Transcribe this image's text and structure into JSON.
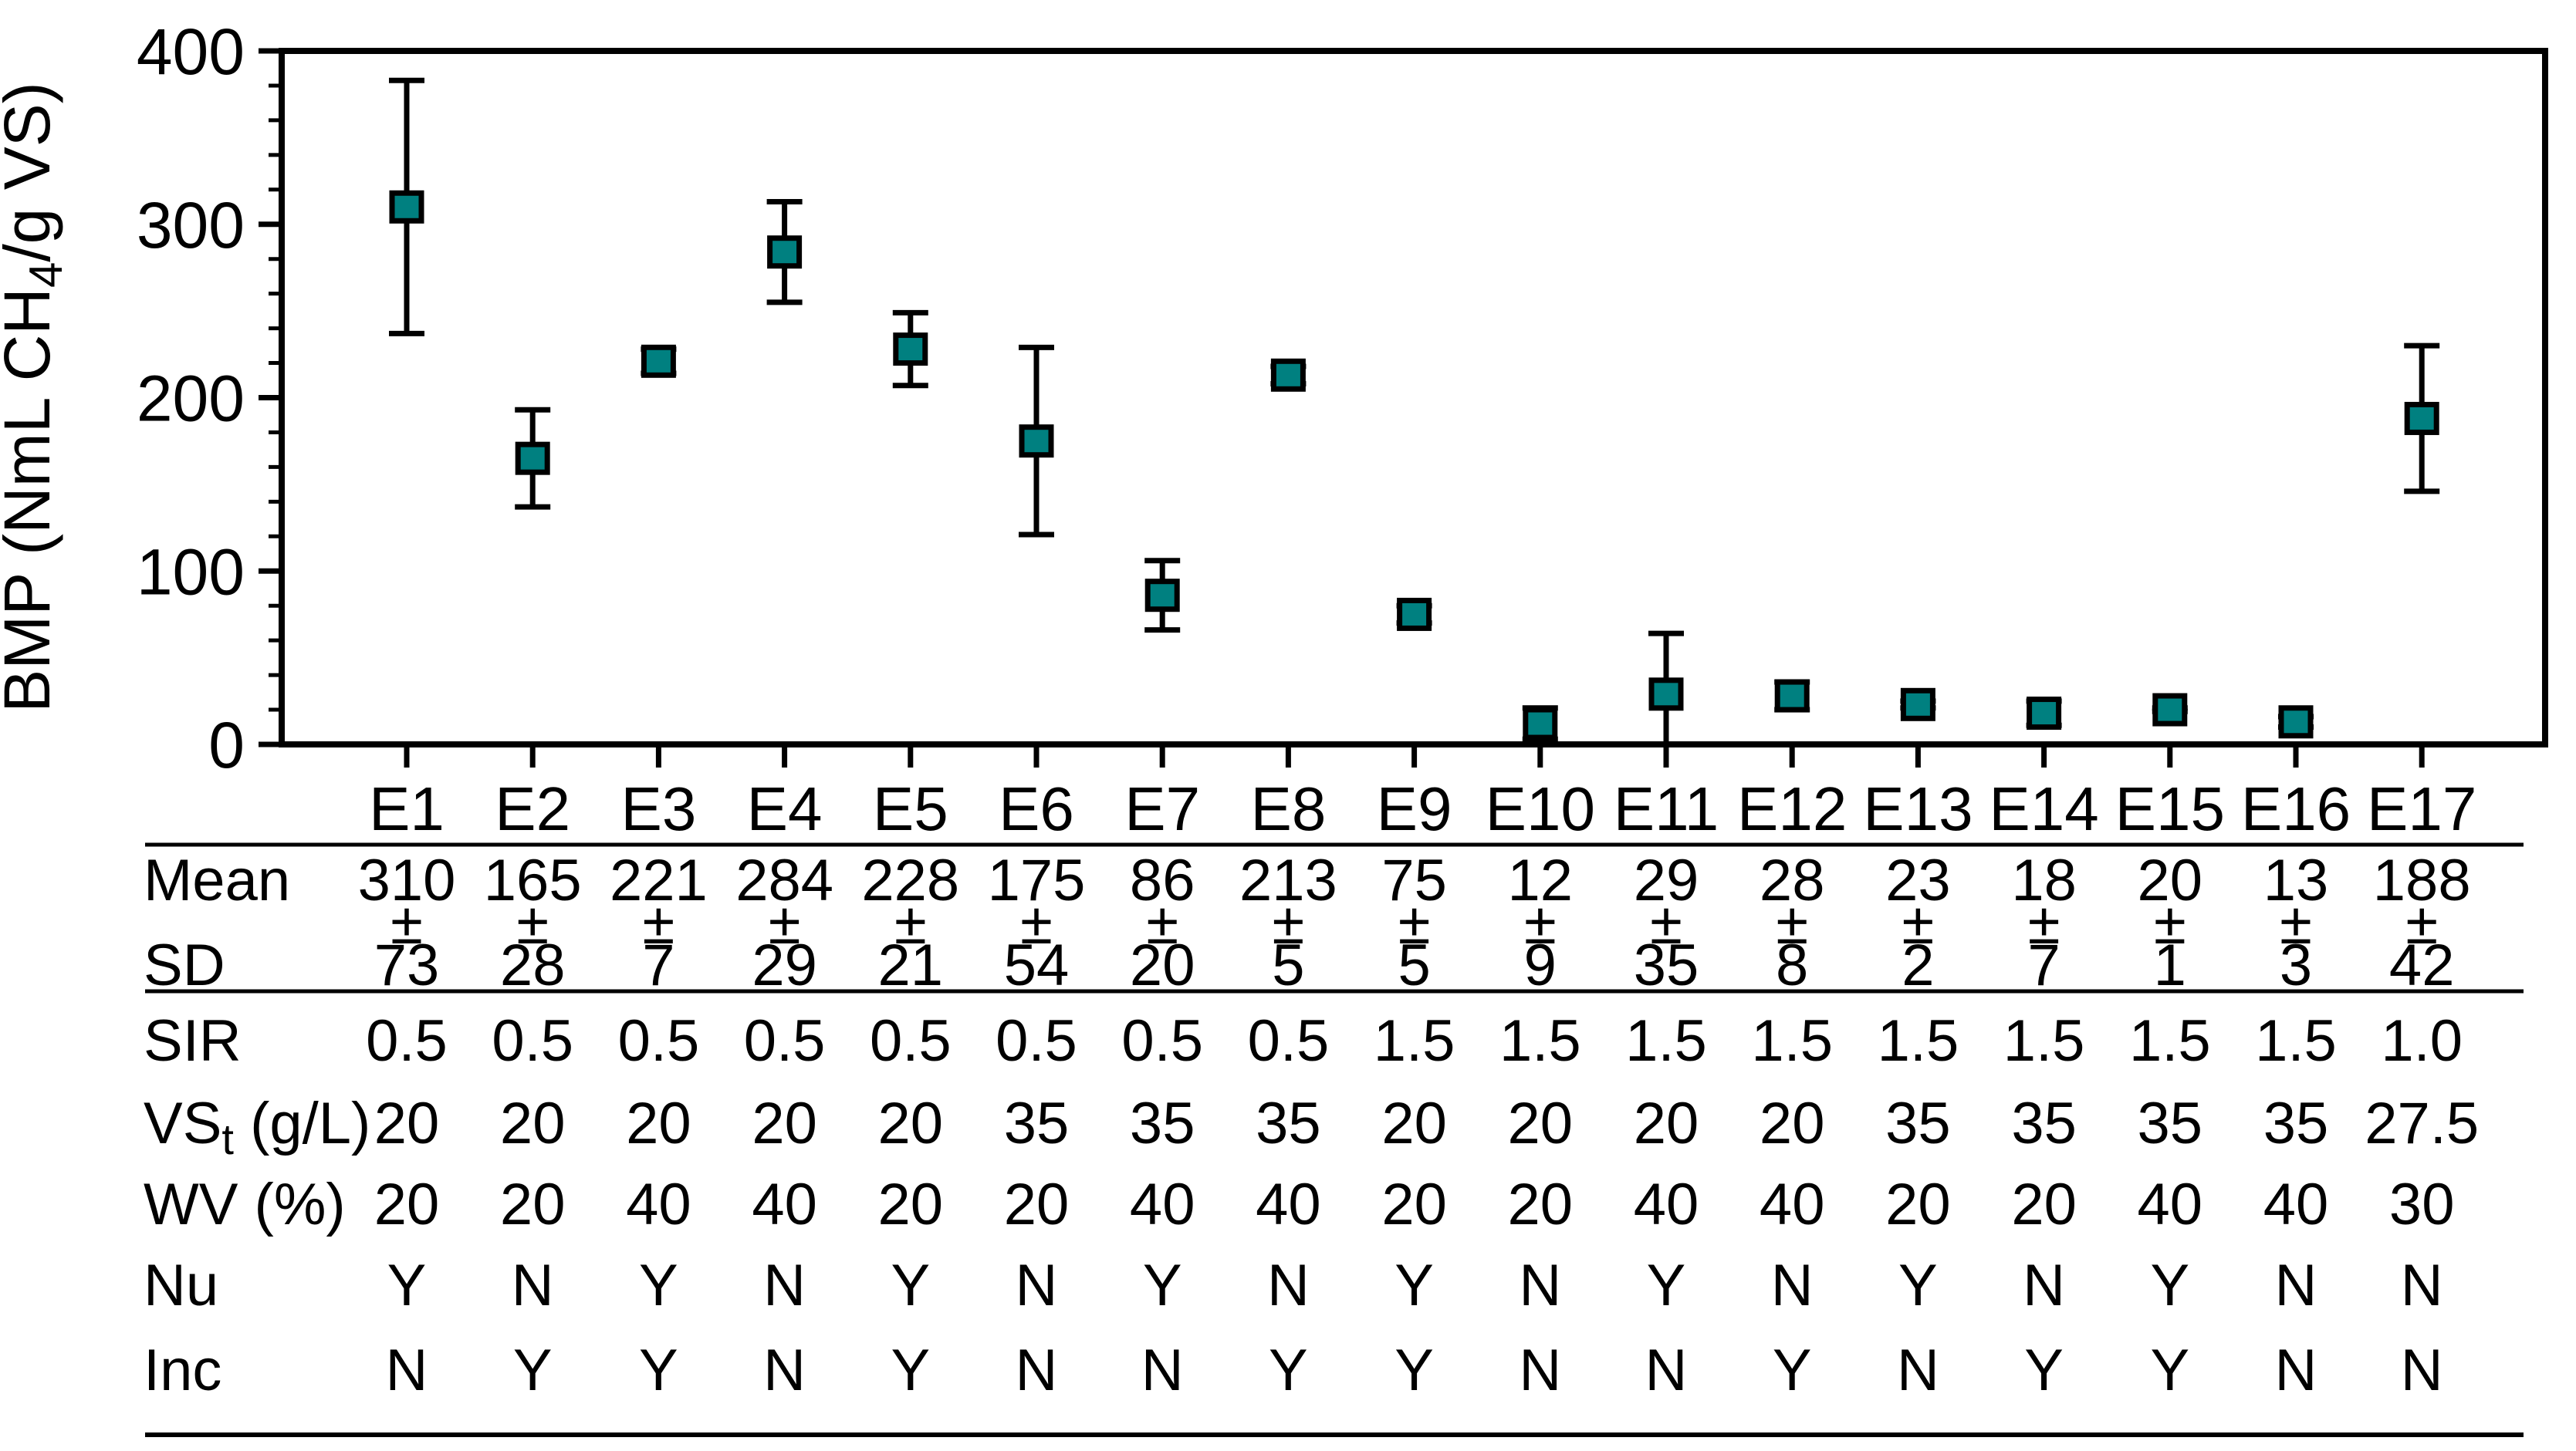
{
  "chart_data": {
    "type": "scatter",
    "title": "",
    "ylabel_prefix": "BMP (NmL CH",
    "ylabel_sub": "4",
    "ylabel_suffix": "/g VS)",
    "xlabel": "",
    "ylim": [
      0,
      400
    ],
    "yticks": [
      0,
      100,
      200,
      300,
      400
    ],
    "minor_tick_step": 20,
    "grid": false,
    "legend": "none",
    "categories": [
      "E1",
      "E2",
      "E3",
      "E4",
      "E5",
      "E6",
      "E7",
      "E8",
      "E9",
      "E10",
      "E11",
      "E12",
      "E13",
      "E14",
      "E15",
      "E16",
      "E17"
    ],
    "series": [
      {
        "name": "Mean BMP",
        "values": [
          310,
          165,
          221,
          284,
          228,
          175,
          86,
          213,
          75,
          12,
          29,
          28,
          23,
          18,
          20,
          13,
          188
        ]
      },
      {
        "name": "SD",
        "values": [
          73,
          28,
          7,
          29,
          21,
          54,
          20,
          5,
          5,
          9,
          35,
          8,
          2,
          7,
          1,
          3,
          42
        ]
      }
    ],
    "marker_color": "#008080",
    "marker_border_color": "#000000",
    "axis_color": "#000000"
  },
  "table": {
    "row_labels": {
      "mean": "Mean",
      "pm": "",
      "sd": "SD",
      "sir": "SIR",
      "vst_main": "VS",
      "vst_sub": "t",
      "vst_unit": " (g/L)",
      "wv": "WV (%)",
      "nu": "Nu",
      "inc": "Inc"
    },
    "pm_symbol": "±",
    "columns": [
      "E1",
      "E2",
      "E3",
      "E4",
      "E5",
      "E6",
      "E7",
      "E8",
      "E9",
      "E10",
      "E11",
      "E12",
      "E13",
      "E14",
      "E15",
      "E16",
      "E17"
    ],
    "mean": [
      "310",
      "165",
      "221",
      "284",
      "228",
      "175",
      "86",
      "213",
      "75",
      "12",
      "29",
      "28",
      "23",
      "18",
      "20",
      "13",
      "188"
    ],
    "sd": [
      "73",
      "28",
      "7",
      "29",
      "21",
      "54",
      "20",
      "5",
      "5",
      "9",
      "35",
      "8",
      "2",
      "7",
      "1",
      "3",
      "42"
    ],
    "sir": [
      "0.5",
      "0.5",
      "0.5",
      "0.5",
      "0.5",
      "0.5",
      "0.5",
      "0.5",
      "1.5",
      "1.5",
      "1.5",
      "1.5",
      "1.5",
      "1.5",
      "1.5",
      "1.5",
      "1.0"
    ],
    "vst": [
      "20",
      "20",
      "20",
      "20",
      "20",
      "35",
      "35",
      "35",
      "20",
      "20",
      "20",
      "20",
      "35",
      "35",
      "35",
      "35",
      "27.5"
    ],
    "wv": [
      "20",
      "20",
      "40",
      "40",
      "20",
      "20",
      "40",
      "40",
      "20",
      "20",
      "40",
      "40",
      "20",
      "20",
      "40",
      "40",
      "30"
    ],
    "nu": [
      "Y",
      "N",
      "Y",
      "N",
      "Y",
      "N",
      "Y",
      "N",
      "Y",
      "N",
      "Y",
      "N",
      "Y",
      "N",
      "Y",
      "N",
      "N"
    ],
    "inc": [
      "N",
      "Y",
      "Y",
      "N",
      "Y",
      "N",
      "N",
      "Y",
      "Y",
      "N",
      "N",
      "Y",
      "N",
      "Y",
      "Y",
      "N",
      "N"
    ]
  }
}
